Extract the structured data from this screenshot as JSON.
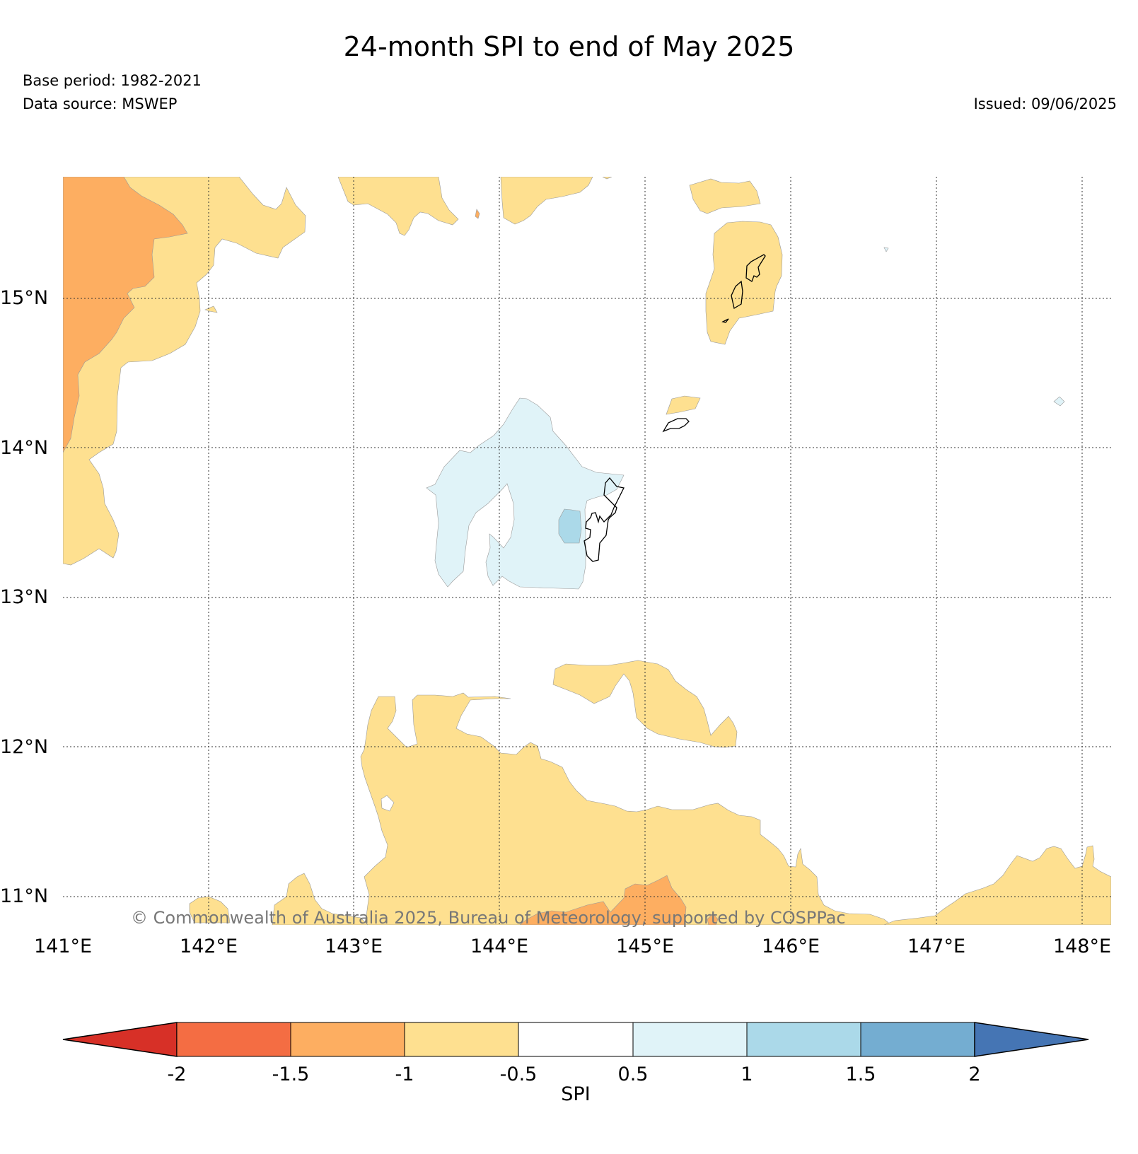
{
  "title": "24-month SPI to end of May 2025",
  "base_period": "Base period: 1982-2021",
  "data_source": "Data source: MSWEP",
  "issued": "Issued: 09/06/2025",
  "watermark": "© Commonwealth of Australia 2025, Bureau of Meteorology, supported by COSPPac",
  "lat_labels": [
    "15°N",
    "14°N",
    "13°N",
    "12°N",
    "11°N"
  ],
  "lon_labels": [
    "141°E",
    "142°E",
    "143°E",
    "144°E",
    "145°E",
    "146°E",
    "147°E",
    "148°E"
  ],
  "colorbar": {
    "title": "SPI",
    "ticks": [
      "-2",
      "-1.5",
      "-1",
      "-0.5",
      "0.5",
      "1",
      "1.5",
      "2"
    ],
    "colors": {
      "below_-2": "#d73027",
      "-2_to_-1.5": "#f46d43",
      "-1.5_to_-1": "#fdae61",
      "-1_to_-0.5": "#fee090",
      "-0.5_to_0.5": "#ffffff",
      "0.5_to_1": "#e0f3f8",
      "1_to_1.5": "#abd9e9",
      "1.5_to_2": "#74add1",
      "above_2": "#4575b4"
    }
  }
}
